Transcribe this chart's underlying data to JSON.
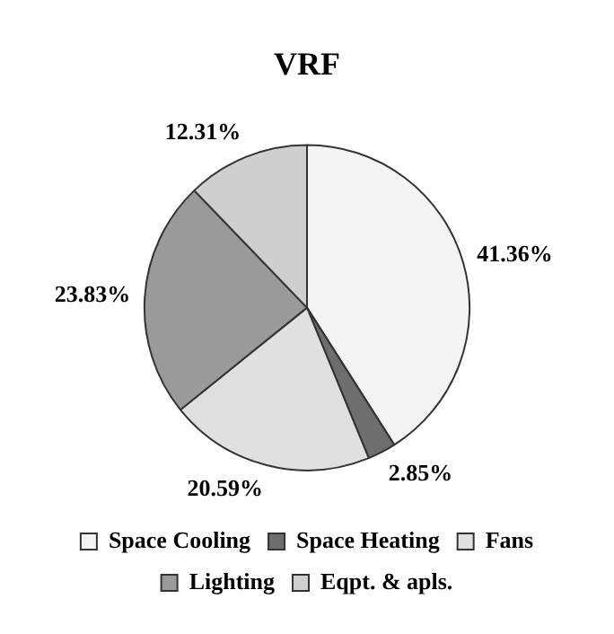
{
  "chart_data": {
    "type": "pie",
    "title": "VRF",
    "categories": [
      "Space Cooling",
      "Space Heating",
      "Fans",
      "Lighting",
      "Eqpt. & apls."
    ],
    "values": [
      41.36,
      2.85,
      20.59,
      23.83,
      12.31
    ],
    "colors": [
      "#f4f4f4",
      "#6e6e6e",
      "#e0e0e0",
      "#9a9a9a",
      "#cfcfcf"
    ],
    "value_labels": [
      "41.36%",
      "2.85%",
      "20.59%",
      "23.83%",
      "12.31%"
    ],
    "legend": "bottom"
  }
}
